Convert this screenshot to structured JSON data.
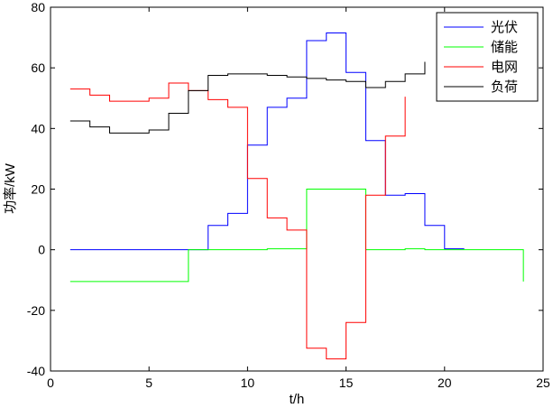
{
  "chart_data": {
    "type": "line",
    "step": true,
    "xlabel": "t/h",
    "ylabel": "功率/kW",
    "xlim": [
      0,
      25
    ],
    "ylim": [
      -40,
      80
    ],
    "xticks": [
      0,
      5,
      10,
      15,
      20,
      25
    ],
    "yticks": [
      -40,
      -20,
      0,
      20,
      40,
      60,
      80
    ],
    "grid": false,
    "legend_position": "top-right",
    "series": [
      {
        "name": "光伏",
        "color": "#0000ff",
        "x": [
          1,
          2,
          3,
          4,
          5,
          6,
          7,
          8,
          9,
          10,
          11,
          12,
          13,
          14,
          15,
          16,
          17,
          18,
          19,
          20,
          21
        ],
        "values": [
          0,
          0,
          0,
          0,
          0,
          0,
          0,
          8,
          12,
          34.5,
          47,
          50,
          69,
          71.5,
          58.5,
          36,
          18,
          18.5,
          8,
          0.3,
          0.3
        ]
      },
      {
        "name": "储能",
        "color": "#00ff00",
        "x": [
          1,
          2,
          3,
          4,
          5,
          6,
          7,
          8,
          9,
          10,
          11,
          12,
          13,
          14,
          15,
          16,
          17,
          18,
          19,
          20,
          21,
          22,
          23,
          24
        ],
        "values": [
          -10.5,
          -10.5,
          -10.5,
          -10.5,
          -10.5,
          -10.5,
          0,
          0,
          0,
          0,
          0.3,
          0.3,
          20,
          20,
          20,
          0,
          0,
          0.3,
          0,
          0,
          0,
          0,
          0,
          -10.5
        ]
      },
      {
        "name": "电网",
        "color": "#ff0000",
        "x": [
          1,
          2,
          3,
          4,
          5,
          6,
          7,
          8,
          9,
          10,
          11,
          12,
          13,
          14,
          15,
          16,
          17,
          18
        ],
        "values": [
          53,
          51,
          49,
          49,
          50,
          55,
          52.5,
          49.5,
          47,
          23.5,
          10.5,
          6.5,
          -32.5,
          -36,
          -24,
          18,
          37.5,
          50.5
        ]
      },
      {
        "name": "负荷",
        "color": "#000000",
        "x": [
          1,
          2,
          3,
          4,
          5,
          6,
          7,
          8,
          9,
          10,
          11,
          12,
          13,
          14,
          15,
          16,
          17,
          18,
          19
        ],
        "values": [
          42.5,
          40.5,
          38.5,
          38.5,
          39.5,
          45,
          52.5,
          57.5,
          58,
          58,
          57.5,
          57,
          56.5,
          56,
          55.5,
          53.5,
          55.5,
          58,
          62
        ]
      }
    ]
  }
}
